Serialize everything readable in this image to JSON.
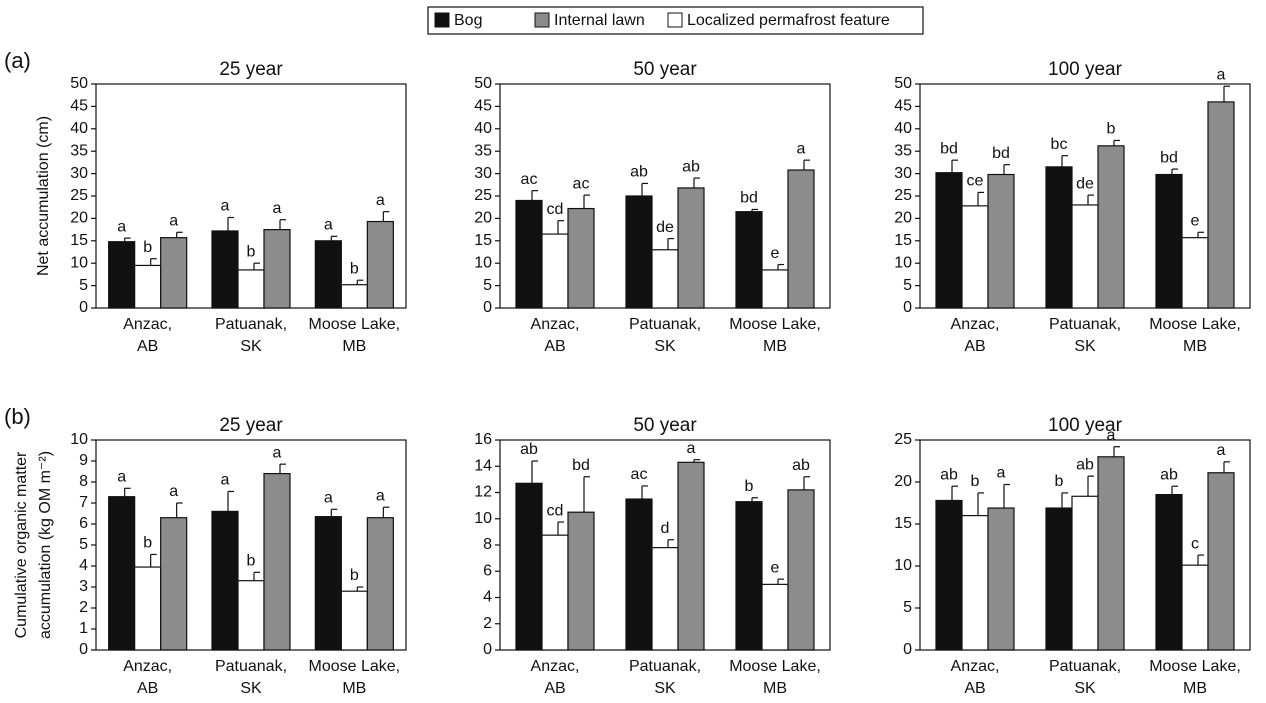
{
  "chart_data": [
    {
      "type": "bar",
      "panel": "(a)",
      "title": "25 year",
      "ylabel": "Net accumulation (cm)",
      "categories": [
        "Anzac,\nAB",
        "Patuanak,\nSK",
        "Moose Lake,\nMB"
      ],
      "ylim": [
        0,
        50
      ],
      "yticks": [
        0,
        5,
        10,
        15,
        20,
        25,
        30,
        35,
        40,
        45,
        50
      ],
      "series": [
        {
          "name": "Bog",
          "color": "#111111",
          "values": [
            14.8,
            17.2,
            15
          ],
          "errors": [
            0.8,
            3,
            1
          ],
          "letters": [
            "a",
            "a",
            "a"
          ]
        },
        {
          "name": "Internal lawn",
          "color": "#8c8c8c",
          "values": [
            15.7,
            17.5,
            19.3
          ],
          "errors": [
            1.2,
            2.2,
            2.2
          ],
          "letters": [
            "a",
            "a",
            "a"
          ]
        },
        {
          "name": "Localized permafrost feature",
          "color": "#ffffff",
          "values": [
            9.5,
            8.5,
            5.2
          ],
          "errors": [
            1.5,
            1.5,
            1
          ],
          "letters": [
            "b",
            "b",
            "b"
          ]
        }
      ]
    },
    {
      "type": "bar",
      "title": "50 year",
      "categories": [
        "Anzac,\nAB",
        "Patuanak,\nSK",
        "Moose Lake,\nMB"
      ],
      "ylim": [
        0,
        50
      ],
      "yticks": [
        0,
        5,
        10,
        15,
        20,
        25,
        30,
        35,
        40,
        45,
        50
      ],
      "series": [
        {
          "color": "#111111",
          "values": [
            24,
            25,
            21.5
          ],
          "errors": [
            2.2,
            2.8,
            0.5
          ],
          "letters": [
            "ac",
            "ab",
            "bd"
          ]
        },
        {
          "color": "#8c8c8c",
          "values": [
            22.2,
            26.8,
            30.8
          ],
          "errors": [
            3,
            2.2,
            2.2
          ],
          "letters": [
            "ac",
            "ab",
            "a"
          ]
        },
        {
          "color": "#ffffff",
          "values": [
            16.5,
            13,
            8.5
          ],
          "errors": [
            3,
            2.5,
            1.2
          ],
          "letters": [
            "cd",
            "de",
            "e"
          ]
        }
      ]
    },
    {
      "type": "bar",
      "title": "100 year",
      "categories": [
        "Anzac,\nAB",
        "Patuanak,\nSK",
        "Moose Lake,\nMB"
      ],
      "ylim": [
        0,
        50
      ],
      "yticks": [
        0,
        5,
        10,
        15,
        20,
        25,
        30,
        35,
        40,
        45,
        50
      ],
      "series": [
        {
          "color": "#111111",
          "values": [
            30.2,
            31.5,
            29.8
          ],
          "errors": [
            2.8,
            2.5,
            1.2
          ],
          "letters": [
            "bd",
            "bc",
            "bd"
          ]
        },
        {
          "color": "#8c8c8c",
          "values": [
            29.8,
            36.2,
            46
          ],
          "errors": [
            2.2,
            1.2,
            3.5
          ],
          "letters": [
            "bd",
            "b",
            "a"
          ]
        },
        {
          "color": "#ffffff",
          "values": [
            22.8,
            23,
            15.7
          ],
          "errors": [
            3,
            2.2,
            1.2
          ],
          "letters": [
            "ce",
            "de",
            "e"
          ]
        }
      ]
    },
    {
      "type": "bar",
      "panel": "(b)",
      "title": "25 year",
      "ylabel": "Cumulative organic matter\naccumulation (kg OM m⁻²)",
      "categories": [
        "Anzac,\nAB",
        "Patuanak,\nSK",
        "Moose Lake,\nMB"
      ],
      "ylim": [
        0,
        10
      ],
      "yticks": [
        0,
        1,
        2,
        3,
        4,
        5,
        6,
        7,
        8,
        9,
        10
      ],
      "series": [
        {
          "color": "#111111",
          "values": [
            7.3,
            6.6,
            6.35
          ],
          "errors": [
            0.4,
            0.95,
            0.35
          ],
          "letters": [
            "a",
            "a",
            "a"
          ]
        },
        {
          "color": "#8c8c8c",
          "values": [
            6.3,
            8.4,
            6.3
          ],
          "errors": [
            0.7,
            0.45,
            0.5
          ],
          "letters": [
            "a",
            "a",
            "a"
          ]
        },
        {
          "color": "#ffffff",
          "values": [
            3.95,
            3.3,
            2.8
          ],
          "errors": [
            0.6,
            0.4,
            0.2
          ],
          "letters": [
            "b",
            "b",
            "b"
          ]
        }
      ]
    },
    {
      "type": "bar",
      "title": "50 year",
      "categories": [
        "Anzac,\nAB",
        "Patuanak,\nSK",
        "Moose Lake,\nMB"
      ],
      "ylim": [
        0,
        16
      ],
      "yticks": [
        0,
        2,
        4,
        6,
        8,
        10,
        12,
        14,
        16
      ],
      "series": [
        {
          "color": "#111111",
          "values": [
            12.7,
            11.5,
            11.3
          ],
          "errors": [
            1.7,
            1,
            0.3
          ],
          "letters": [
            "ab",
            "ac",
            "b"
          ]
        },
        {
          "color": "#8c8c8c",
          "values": [
            10.5,
            14.3,
            12.2
          ],
          "errors": [
            2.7,
            0.2,
            1
          ],
          "letters": [
            "bd",
            "a",
            "ab"
          ]
        },
        {
          "color": "#ffffff",
          "values": [
            8.75,
            7.8,
            5
          ],
          "errors": [
            1,
            0.6,
            0.4
          ],
          "letters": [
            "cd",
            "d",
            "e"
          ]
        }
      ]
    },
    {
      "type": "bar",
      "title": "100 year",
      "categories": [
        "Anzac,\nAB",
        "Patuanak,\nSK",
        "Moose Lake,\nMB"
      ],
      "ylim": [
        0,
        25
      ],
      "yticks": [
        0,
        5,
        10,
        15,
        20,
        25
      ],
      "series": [
        {
          "color": "#111111",
          "values": [
            17.8,
            16.9,
            18.5
          ],
          "errors": [
            1.7,
            1.8,
            1
          ],
          "letters": [
            "ab",
            "b",
            "ab"
          ]
        },
        {
          "color": "#8c8c8c",
          "values": [
            16.9,
            23,
            21.1
          ],
          "errors": [
            2.8,
            1.2,
            1.3
          ],
          "letters": [
            "a",
            "a",
            "a"
          ]
        },
        {
          "color": "#ffffff",
          "values": [
            16,
            18.3,
            10.1
          ],
          "errors": [
            2.7,
            2.4,
            1.2
          ],
          "letters": [
            "b",
            "ab",
            "c"
          ]
        }
      ]
    }
  ]
}
